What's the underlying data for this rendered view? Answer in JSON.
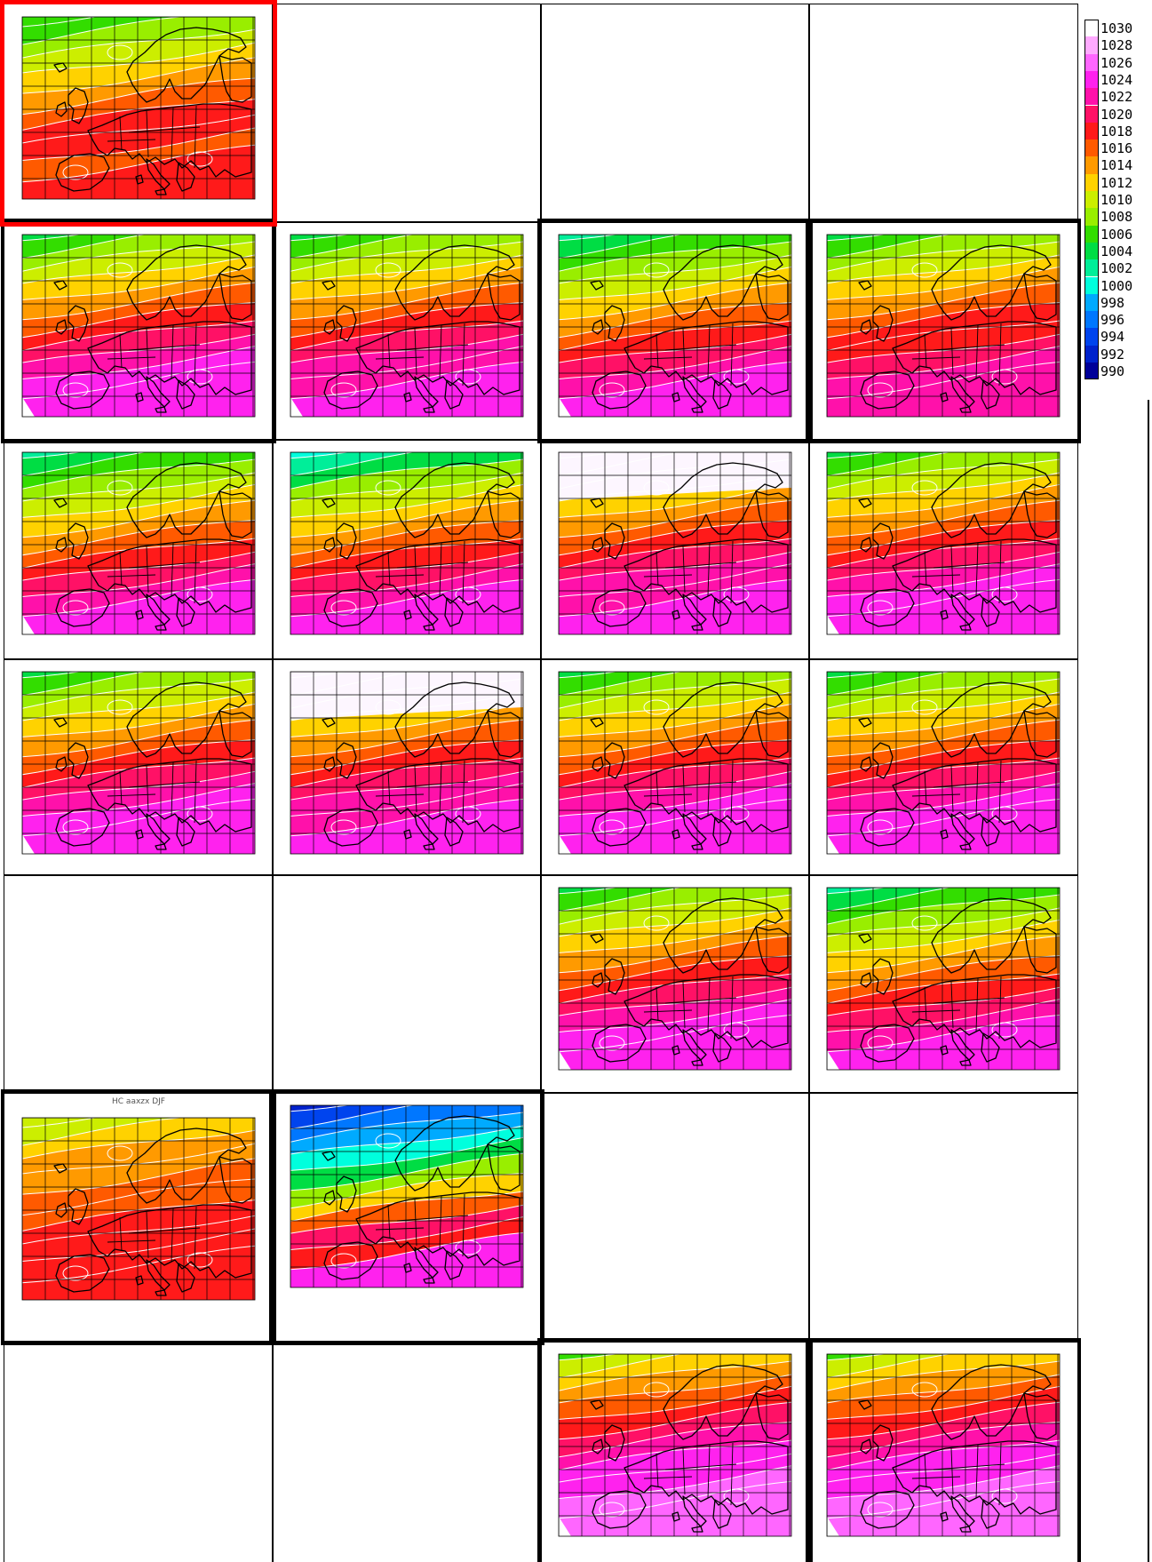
{
  "legend": {
    "levels": [
      "1030",
      "1028",
      "1026",
      "1024",
      "1022",
      "1020",
      "1018",
      "1016",
      "1014",
      "1012",
      "1010",
      "1008",
      "1006",
      "1004",
      "1002",
      "1000",
      "998",
      "996",
      "994",
      "992",
      "990"
    ],
    "colors": [
      "#ffffff",
      "#ffaaff",
      "#ff66ff",
      "#ff22ee",
      "#ff11aa",
      "#ff1166",
      "#ff1a1a",
      "#ff5a00",
      "#ff9a00",
      "#ffd200",
      "#ccee00",
      "#99ee00",
      "#33dd00",
      "#00dd44",
      "#00ee99",
      "#00ffdd",
      "#00aaff",
      "#0077ff",
      "#0044ee",
      "#0022cc",
      "#000099"
    ]
  },
  "panels": [
    {
      "id": "p-r1c1",
      "row": 1,
      "col": 1,
      "frame": "red",
      "variant": "observed",
      "title": ""
    },
    {
      "id": "p-r1c2",
      "row": 1,
      "col": 2,
      "frame": "thin",
      "variant": "empty",
      "title": ""
    },
    {
      "id": "p-r1c3",
      "row": 1,
      "col": 3,
      "frame": "thin",
      "variant": "empty",
      "title": ""
    },
    {
      "id": "p-r1c4",
      "row": 1,
      "col": 4,
      "frame": "thin",
      "variant": "empty",
      "title": ""
    },
    {
      "id": "p-r2c1",
      "row": 2,
      "col": 1,
      "frame": "thick",
      "variant": "model",
      "title": ""
    },
    {
      "id": "p-r2c2",
      "row": 2,
      "col": 2,
      "frame": "thin",
      "variant": "model-white-bottom",
      "title": ""
    },
    {
      "id": "p-r2c3",
      "row": 2,
      "col": 3,
      "frame": "thick",
      "variant": "model-cyan",
      "title": ""
    },
    {
      "id": "p-r2c4",
      "row": 2,
      "col": 4,
      "frame": "thick",
      "variant": "model-red",
      "title": ""
    },
    {
      "id": "p-r3c1",
      "row": 3,
      "col": 1,
      "frame": "thin",
      "variant": "model-cyan",
      "title": ""
    },
    {
      "id": "p-r3c2",
      "row": 3,
      "col": 2,
      "frame": "thin",
      "variant": "model-cyan-strong",
      "title": ""
    },
    {
      "id": "p-r3c3",
      "row": 3,
      "col": 3,
      "frame": "thin",
      "variant": "model-white-top",
      "title": ""
    },
    {
      "id": "p-r3c4",
      "row": 3,
      "col": 4,
      "frame": "thin",
      "variant": "model",
      "title": ""
    },
    {
      "id": "p-r4c1",
      "row": 4,
      "col": 1,
      "frame": "thin",
      "variant": "model",
      "title": ""
    },
    {
      "id": "p-r4c2",
      "row": 4,
      "col": 2,
      "frame": "thin",
      "variant": "model-white-top",
      "title": ""
    },
    {
      "id": "p-r4c3",
      "row": 4,
      "col": 3,
      "frame": "thin",
      "variant": "model",
      "title": ""
    },
    {
      "id": "p-r4c4",
      "row": 4,
      "col": 4,
      "frame": "thin",
      "variant": "model",
      "title": ""
    },
    {
      "id": "p-r5c1",
      "row": 5,
      "col": 1,
      "frame": "thin",
      "variant": "empty",
      "title": ""
    },
    {
      "id": "p-r5c2",
      "row": 5,
      "col": 2,
      "frame": "thin",
      "variant": "empty",
      "title": ""
    },
    {
      "id": "p-r5c3",
      "row": 5,
      "col": 3,
      "frame": "thin",
      "variant": "model",
      "title": ""
    },
    {
      "id": "p-r5c4",
      "row": 5,
      "col": 4,
      "frame": "thin",
      "variant": "model-cyan",
      "title": ""
    },
    {
      "id": "p-r6c1",
      "row": 6,
      "col": 1,
      "frame": "thick",
      "variant": "hindcast",
      "title": "HC aaxzx DJF"
    },
    {
      "id": "p-r6c2",
      "row": 6,
      "col": 2,
      "frame": "thick",
      "variant": "blue",
      "title": ""
    },
    {
      "id": "p-r6c3",
      "row": 6,
      "col": 3,
      "frame": "thin",
      "variant": "empty",
      "title": ""
    },
    {
      "id": "p-r6c4",
      "row": 6,
      "col": 4,
      "frame": "thin",
      "variant": "empty",
      "title": ""
    },
    {
      "id": "p-r7c1",
      "row": 7,
      "col": 1,
      "frame": "thin",
      "variant": "empty",
      "title": ""
    },
    {
      "id": "p-r7c2",
      "row": 7,
      "col": 2,
      "frame": "thin",
      "variant": "empty",
      "title": ""
    },
    {
      "id": "p-r7c3",
      "row": 7,
      "col": 3,
      "frame": "thick",
      "variant": "model-orange",
      "title": ""
    },
    {
      "id": "p-r7c4",
      "row": 7,
      "col": 4,
      "frame": "thick",
      "variant": "model-orange",
      "title": ""
    }
  ]
}
